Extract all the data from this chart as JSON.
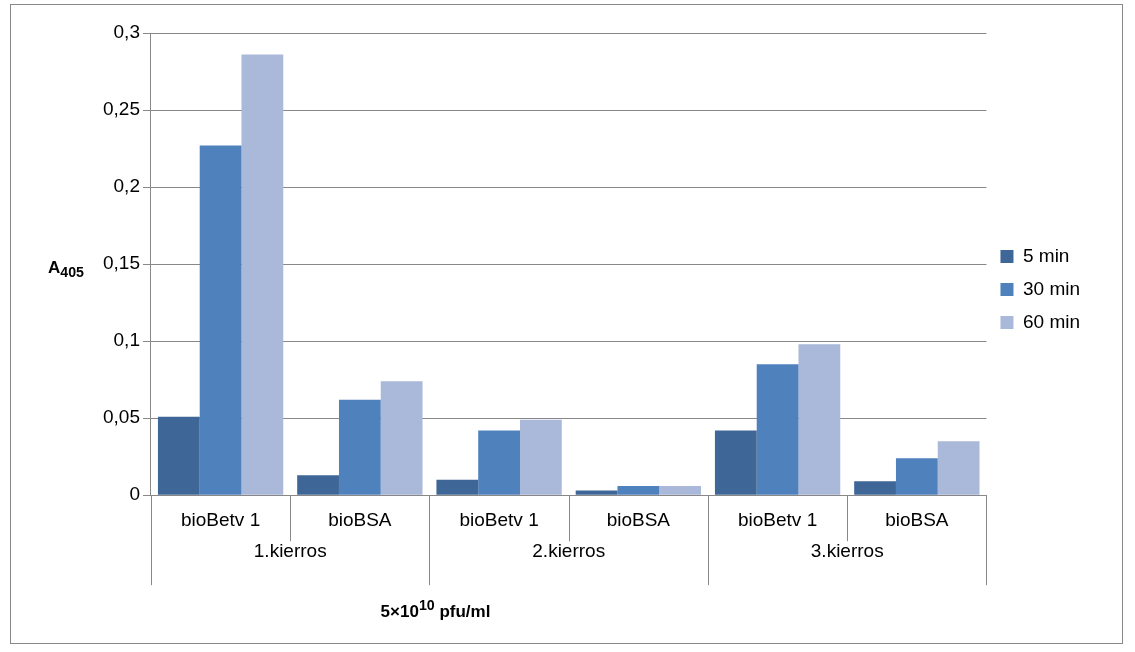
{
  "chart_data": {
    "type": "bar",
    "ylabel": "A$_{405}$",
    "xlabel": "5×10$^{10}$ pfu/ml",
    "categories": [
      "bioBetv 1",
      "bioBSA",
      "bioBetv 1",
      "bioBSA",
      "bioBetv 1",
      "bioBSA"
    ],
    "annotations": [
      "1.kierros",
      "2.kierros",
      "3.kierros"
    ],
    "series": [
      {
        "name": "5 min",
        "color": "#3e6697",
        "values": [
          0.051,
          0.013,
          0.01,
          0.003,
          0.042,
          0.009
        ]
      },
      {
        "name": "30 min",
        "color": "#4f81bd",
        "values": [
          0.227,
          0.062,
          0.042,
          0.006,
          0.085,
          0.024
        ]
      },
      {
        "name": "60 min",
        "color": "#aab9d9",
        "values": [
          0.286,
          0.074,
          0.049,
          0.006,
          0.098,
          0.035
        ]
      }
    ],
    "ylim": [
      0,
      0.3
    ],
    "yticks": [
      {
        "value": 0,
        "label": "0"
      },
      {
        "value": 0.05,
        "label": "0,05"
      },
      {
        "value": 0.1,
        "label": "0,1"
      },
      {
        "value": 0.15,
        "label": "0,15"
      },
      {
        "value": 0.2,
        "label": "0,2"
      },
      {
        "value": 0.25,
        "label": "0,25"
      },
      {
        "value": 0.3,
        "label": "0,3"
      }
    ],
    "grid": "y",
    "legend": "right"
  }
}
